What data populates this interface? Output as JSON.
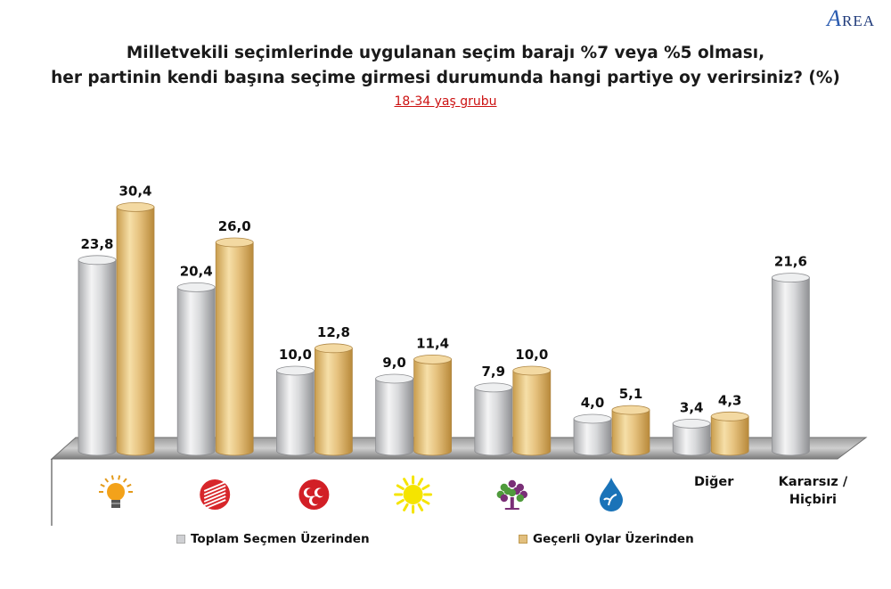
{
  "logo": {
    "initial": "A",
    "rest": "REA"
  },
  "title": {
    "line1": "Milletvekili seçimlerinde uygulanan seçim barajı %7 veya %5 olması,",
    "line2": "her partinin kendi başına seçime girmesi durumunda hangi partiye oy verirsiniz? (%)"
  },
  "subtitle": "18-34 yaş grubu",
  "colors": {
    "silver": "#c9cacd",
    "gold": "#e2bf7e",
    "floor": "#8a8a8a"
  },
  "chart_data": {
    "type": "bar",
    "title": "Milletvekili seçimlerinde uygulanan seçim barajı %7 veya %5 olması, her partinin kendi başına seçime girmesi durumunda hangi partiye oy verirsiniz? (%)",
    "subtitle": "18-34 yaş grubu",
    "categories": [
      {
        "icon": "lightbulb-icon",
        "label": ""
      },
      {
        "icon": "six-arrows-icon",
        "label": ""
      },
      {
        "icon": "crescents-icon",
        "label": ""
      },
      {
        "icon": "sun-icon",
        "label": ""
      },
      {
        "icon": "tree-icon",
        "label": ""
      },
      {
        "icon": "water-drop-icon",
        "label": ""
      },
      {
        "icon": "",
        "label": "Diğer"
      },
      {
        "icon": "",
        "label": "Kararsız / Hiçbiri"
      }
    ],
    "series": [
      {
        "name": "Toplam Seçmen Üzerinden",
        "color": "#c9cacd",
        "values": [
          23.8,
          20.4,
          10.0,
          9.0,
          7.9,
          4.0,
          3.4,
          21.6
        ],
        "labels": [
          "23,8",
          "20,4",
          "10,0",
          "9,0",
          "7,9",
          "4,0",
          "3,4",
          "21,6"
        ]
      },
      {
        "name": "Geçerli Oylar Üzerinden",
        "color": "#e2bf7e",
        "values": [
          30.4,
          26.0,
          12.8,
          11.4,
          10.0,
          5.1,
          4.3,
          null
        ],
        "labels": [
          "30,4",
          "26,0",
          "12,8",
          "11,4",
          "10,0",
          "5,1",
          "4,3",
          ""
        ]
      }
    ],
    "ylim": [
      0,
      31
    ],
    "grid": false,
    "legend": "bottom"
  }
}
